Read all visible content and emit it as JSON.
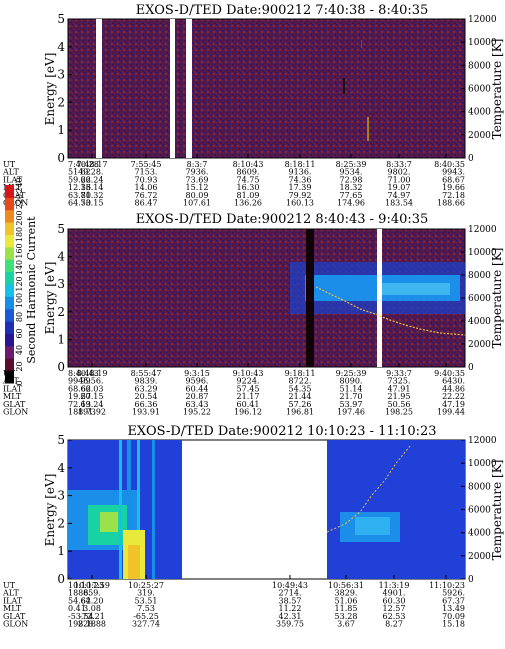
{
  "colorbar": {
    "label": "Second Harmonic Current",
    "ticks": [
      "0",
      "20",
      "40",
      "60",
      "80",
      "100",
      "120",
      "140",
      "160",
      "180",
      "200",
      "220",
      "240"
    ],
    "colors": [
      "#000000",
      "#5a0d2e",
      "#6b1a6f",
      "#2a1590",
      "#1e2fb4",
      "#1a5ad8",
      "#178fe8",
      "#16c0e6",
      "#18d2a4",
      "#3fe07a",
      "#9be24a",
      "#e8e93a",
      "#f0c32a",
      "#ee8a20",
      "#e74a1a",
      "#d8151a"
    ]
  },
  "chart_data": [
    {
      "type": "heatmap",
      "title": "EXOS-D/TED   Date:900212   7:40:38 - 8:40:35",
      "ylabel": "Energy [eV]",
      "y2label": "Temperature [K]",
      "ylim": [
        0,
        5
      ],
      "y2lim": [
        0,
        12000
      ],
      "yticks": [
        "0",
        "1",
        "2",
        "3",
        "4",
        "5"
      ],
      "y2ticks": [
        "0",
        "2000",
        "4000",
        "6000",
        "8000",
        "10000",
        "12000"
      ],
      "data_gaps": [
        [
          "7:46:20",
          "7:47:10"
        ],
        [
          "7:56:10",
          "7:56:50"
        ],
        [
          "7:58:40",
          "7:59:30"
        ]
      ],
      "background": "noise",
      "rows": [
        "UT",
        "ALT",
        "ILAT",
        "MLT",
        "GLAT",
        "GLON"
      ],
      "columns": [
        [
          "7:40:28",
          "5149.",
          "59.22",
          "12.36",
          "63.80",
          "64.50"
        ],
        [
          "7:48:17",
          "6228.",
          "66.24",
          "13.14",
          "71.32",
          "73.15"
        ],
        [
          "7:55:45",
          "7153.",
          "70.93",
          "14.06",
          "76.72",
          "86.47"
        ],
        [
          "8:3:7",
          "7936.",
          "73.69",
          "15.12",
          "80.09",
          "107.61"
        ],
        [
          "8:10:43",
          "8609.",
          "74.75",
          "16.30",
          "81.09",
          "136.26"
        ],
        [
          "8:18:11",
          "9136.",
          "74.36",
          "17.39",
          "79.92",
          "160.13"
        ],
        [
          "8:25:39",
          "9534.",
          "72.98",
          "18.32",
          "77.65",
          "174.96"
        ],
        [
          "8:33:7",
          "9802.",
          "71.00",
          "19.07",
          "74.97",
          "183.54"
        ],
        [
          "8:40:35",
          "9943.",
          "68.67",
          "19.66",
          "72.18",
          "188.66"
        ]
      ]
    },
    {
      "type": "heatmap",
      "title": "EXOS-D/TED   Date:900212   8:40:43 - 9:40:35",
      "ylabel": "Energy [eV]",
      "y2label": "Temperature [K]",
      "ylim": [
        0,
        5
      ],
      "y2lim": [
        0,
        12000
      ],
      "yticks": [
        "0",
        "1",
        "2",
        "3",
        "4",
        "5"
      ],
      "y2ticks": [
        "0",
        "2000",
        "4000",
        "6000",
        "8000",
        "10000",
        "12000"
      ],
      "data_gaps": [
        [
          "9:27:20",
          "9:27:50"
        ]
      ],
      "background": "noise",
      "rows": [
        "UT",
        "ALT",
        "ILAT",
        "MLT",
        "GLAT",
        "GLON"
      ],
      "columns": [
        [
          "8:40:43",
          "9945.",
          "68.62",
          "19.67",
          "72.13",
          "188.73"
        ],
        [
          "8:48:19",
          "9956.",
          "66.03",
          "20.15",
          "69.24",
          "191.92"
        ],
        [
          "8:55:47",
          "9839.",
          "63.29",
          "20.54",
          "66.36",
          "193.91"
        ],
        [
          "9:3:15",
          "9596.",
          "60.44",
          "20.87",
          "63.43",
          "195.22"
        ],
        [
          "9:10:43",
          "9224.",
          "57.45",
          "21.17",
          "60.41",
          "196.12"
        ],
        [
          "9:18:11",
          "8722.",
          "54.35",
          "21.44",
          "57.26",
          "196.81"
        ],
        [
          "9:25:39",
          "8090.",
          "51.14",
          "21.70",
          "53.97",
          "197.46"
        ],
        [
          "9:33:7",
          "7325.",
          "47.91",
          "21.95",
          "50.56",
          "198.25"
        ],
        [
          "9:40:35",
          "6430.",
          "44.86",
          "22.22",
          "47.19",
          "199.44"
        ]
      ]
    },
    {
      "type": "heatmap",
      "title": "EXOS-D/TED   Date:900212   10:10:23 - 11:10:23",
      "ylabel": "Energy [eV]",
      "y2label": "Temperature [K]",
      "ylim": [
        0,
        5
      ],
      "y2lim": [
        0,
        12000
      ],
      "yticks": [
        "0",
        "1",
        "2",
        "3",
        "4",
        "5"
      ],
      "y2ticks": [
        "0",
        "2000",
        "4000",
        "6000",
        "8000",
        "10000",
        "12000"
      ],
      "data_spans": [
        [
          "10:10:23",
          "10:31:40"
        ],
        [
          "10:49:43",
          "11:10:23"
        ]
      ],
      "background": "blue",
      "rows": [
        "UT",
        "ALT",
        "ILAT",
        "MLT",
        "GLAT",
        "GLON"
      ],
      "columns": [
        [
          "10:10:23",
          "1886.",
          "54.62",
          "0.41",
          "-53.54",
          "198.18"
        ],
        [
          "10:17:59",
          "859.",
          "64.20",
          "3.08",
          "-72.21",
          "228.88"
        ],
        [
          "10:25:27",
          "319.",
          "53.51",
          "7.53",
          "-65.25",
          "327.74"
        ],
        [
          "10:49:43",
          "2714.",
          "38.57",
          "11.22",
          "42.31",
          "359.75"
        ],
        [
          "10:56:31",
          "3829.",
          "51.06",
          "11.85",
          "53.28",
          "3.67"
        ],
        [
          "11:3:19",
          "4901.",
          "60.30",
          "12.57",
          "62.53",
          "8.27"
        ],
        [
          "11:10:23",
          "5926.",
          "67.37",
          "13.49",
          "70.09",
          "15.18"
        ]
      ]
    }
  ]
}
